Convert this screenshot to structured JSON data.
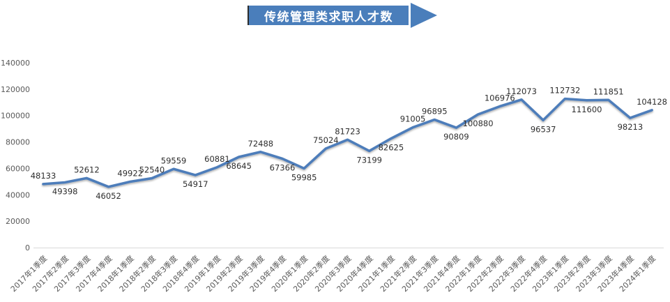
{
  "title_banner": {
    "text": "传统管理类求职人才数"
  },
  "chart_data": {
    "type": "line",
    "title": "传统管理类求职人才数",
    "categories": [
      "2017年1季度",
      "2017年2季度",
      "2017年3季度",
      "2017年4季度",
      "2018年1季度",
      "2018年2季度",
      "2018年3季度",
      "2018年4季度",
      "2019年1季度",
      "2019年2季度",
      "2019年3季度",
      "2019年4季度",
      "2020年1季度",
      "2020年2季度",
      "2020年3季度",
      "2020年4季度",
      "2021年1季度",
      "2021年2季度",
      "2021年3季度",
      "2021年4季度",
      "2022年1季度",
      "2022年2季度",
      "2022年3季度",
      "2022年4季度",
      "2023年1季度",
      "2023年2季度",
      "2023年3季度",
      "2023年4季度",
      "2024年1季度"
    ],
    "values": [
      48133,
      49398,
      52612,
      46052,
      49922,
      52540,
      59559,
      54917,
      60881,
      68645,
      72488,
      67366,
      59985,
      75024,
      81723,
      73199,
      82625,
      91005,
      96895,
      90809,
      100880,
      106976,
      112073,
      96537,
      112732,
      111600,
      111851,
      98213,
      104128
    ],
    "label_positions": [
      "above",
      "below",
      "above",
      "below",
      "above",
      "above",
      "above",
      "below",
      "above",
      "below",
      "above",
      "below",
      "below",
      "above",
      "above",
      "below",
      "below",
      "above",
      "above",
      "below",
      "below",
      "above",
      "above",
      "below",
      "above",
      "below",
      "above",
      "below",
      "above"
    ],
    "xlabel": "",
    "ylabel": "",
    "ylim": [
      0,
      140000
    ],
    "y_ticks": [
      0,
      20000,
      40000,
      60000,
      80000,
      100000,
      120000,
      140000
    ],
    "grid": false,
    "legend": "none",
    "data_labels": true,
    "colors": {
      "line": "#4E7DBA",
      "title_bg": "#4A7EBB",
      "title_text": "#FFFFFF",
      "axis_text": "#595959",
      "data_label_text": "#2e2e2e",
      "axis_line": "#D9D9D9"
    }
  }
}
